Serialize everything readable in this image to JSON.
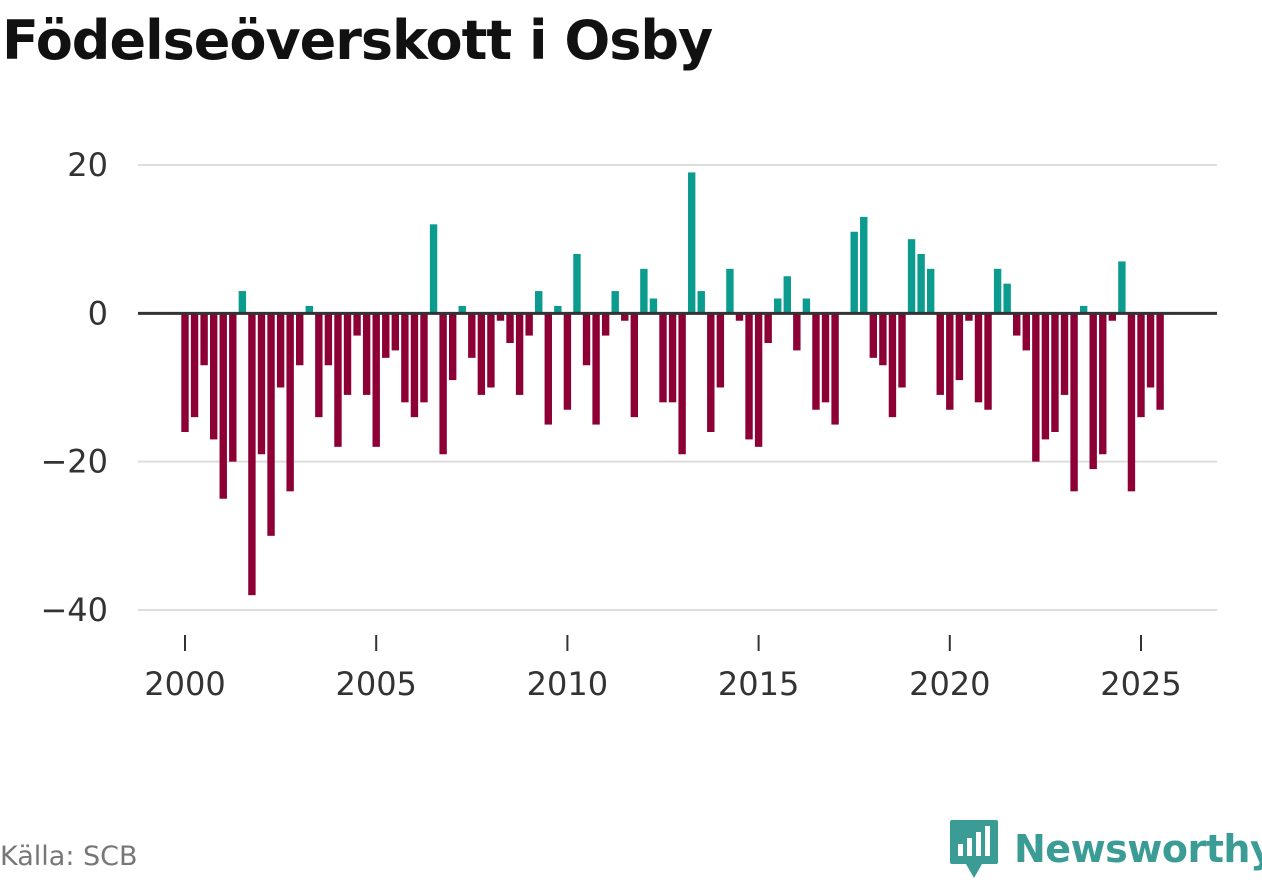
{
  "title": "Födelseöverskott i Osby",
  "source": "Källa: SCB",
  "brand": {
    "name": "Newsworthy",
    "icon": "newsworthy-logo-icon"
  },
  "colors": {
    "positive": "#0b9b8f",
    "negative": "#8c0036",
    "zero_line": "#333333",
    "grid": "#dddddd",
    "brand": "#3b9c95"
  },
  "chart_data": {
    "type": "bar",
    "title": "Födelseöverskott i Osby",
    "xlabel": "",
    "ylabel": "",
    "x_start": 2000,
    "step": 0.25,
    "xlim": [
      1999.6,
      2028.2
    ],
    "ylim": [
      -43,
      24
    ],
    "y_ticks": [
      20,
      0,
      -20,
      -40
    ],
    "y_tick_labels": [
      "20",
      "0",
      "−20",
      "−40"
    ],
    "x_ticks": [
      2000,
      2005,
      2010,
      2015,
      2020,
      2025
    ],
    "x_tick_labels": [
      "2000",
      "2005",
      "2010",
      "2015",
      "2020",
      "2025"
    ],
    "values": [
      -16,
      -14,
      -7,
      -17,
      -25,
      -20,
      3,
      -38,
      -19,
      -30,
      -10,
      -24,
      -7,
      1,
      -14,
      -7,
      -18,
      -11,
      -3,
      -11,
      -18,
      -6,
      -5,
      -12,
      -14,
      -12,
      12,
      -19,
      -9,
      1,
      -6,
      -11,
      -10,
      -1,
      -4,
      -11,
      -3,
      3,
      -15,
      1,
      -13,
      8,
      -7,
      -15,
      -3,
      3,
      -1,
      -14,
      6,
      2,
      -12,
      -12,
      -19,
      19,
      3,
      -16,
      -10,
      6,
      -1,
      -17,
      -18,
      -4,
      2,
      5,
      -5,
      2,
      -13,
      -12,
      -15,
      0,
      11,
      13,
      -6,
      -7,
      -14,
      -10,
      10,
      8,
      6,
      -11,
      -13,
      -9,
      -1,
      -12,
      -13,
      6,
      4,
      -3,
      -5,
      -20,
      -17,
      -16,
      -11,
      -24,
      1,
      -21,
      -19,
      -1,
      7,
      -24,
      -14,
      -10,
      -13
    ]
  }
}
